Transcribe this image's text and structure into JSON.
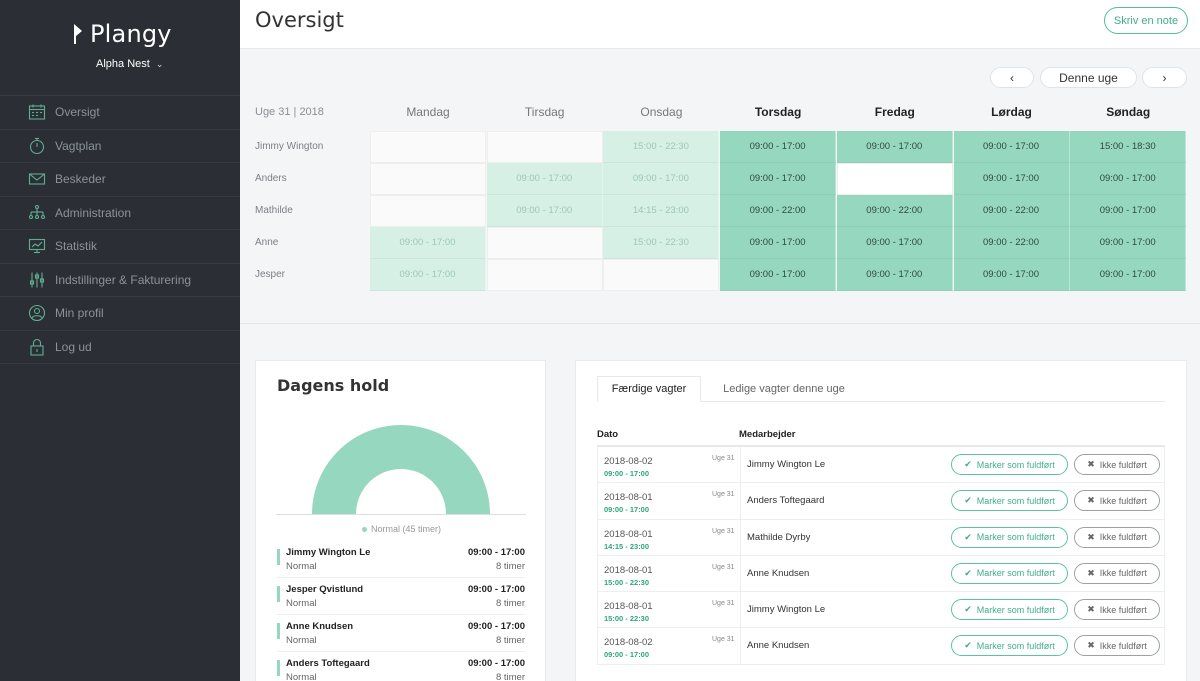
{
  "brand": {
    "name": "Plangy",
    "org": "Alpha Nest"
  },
  "sidebar": {
    "items": [
      {
        "label": "Oversigt",
        "icon": "calendar-icon"
      },
      {
        "label": "Vagtplan",
        "icon": "stopwatch-icon"
      },
      {
        "label": "Beskeder",
        "icon": "envelope-icon"
      },
      {
        "label": "Administration",
        "icon": "org-chart-icon"
      },
      {
        "label": "Statistik",
        "icon": "monitor-chart-icon"
      },
      {
        "label": "Indstillinger & Fakturering",
        "icon": "sliders-icon"
      },
      {
        "label": "Min profil",
        "icon": "user-icon"
      },
      {
        "label": "Log ud",
        "icon": "lock-icon"
      }
    ]
  },
  "header": {
    "title": "Oversigt",
    "note_button": "Skriv en note"
  },
  "schedule": {
    "prev": "‹",
    "current": "Denne uge",
    "next": "›",
    "week_label": "Uge 31 | 2018",
    "days": [
      "Mandag",
      "Tirsdag",
      "Onsdag",
      "Torsdag",
      "Fredag",
      "Lørdag",
      "Søndag"
    ],
    "rows": [
      {
        "name": "Jimmy Wington",
        "cells": [
          "",
          "",
          "15:00 - 22:30",
          "09:00 - 17:00",
          "09:00 - 17:00",
          "09:00 - 17:00",
          "15:00 - 18:30"
        ]
      },
      {
        "name": "Anders",
        "cells": [
          "",
          "09:00 - 17:00",
          "09:00 - 17:00",
          "09:00 - 17:00",
          "",
          "09:00 - 17:00",
          "09:00 - 17:00"
        ]
      },
      {
        "name": "Mathilde",
        "cells": [
          "",
          "09:00 - 17:00",
          "14:15 - 23:00",
          "09:00 - 22:00",
          "09:00 - 22:00",
          "09:00 - 22:00",
          "09:00 - 17:00"
        ]
      },
      {
        "name": "Anne",
        "cells": [
          "09:00 - 17:00",
          "",
          "15:00 - 22:30",
          "09:00 - 17:00",
          "09:00 - 17:00",
          "09:00 - 22:00",
          "09:00 - 17:00"
        ]
      },
      {
        "name": "Jesper",
        "cells": [
          "09:00 - 17:00",
          "",
          "",
          "09:00 - 17:00",
          "09:00 - 17:00",
          "09:00 - 17:00",
          "09:00 - 17:00"
        ]
      }
    ]
  },
  "team": {
    "title": "Dagens hold",
    "legend": "Normal (45 timer)",
    "members": [
      {
        "name": "Jimmy Wington Le",
        "type": "Normal",
        "time": "09:00 - 17:00",
        "hours": "8 timer"
      },
      {
        "name": "Jesper Qvistlund",
        "type": "Normal",
        "time": "09:00 - 17:00",
        "hours": "8 timer"
      },
      {
        "name": "Anne Knudsen",
        "type": "Normal",
        "time": "09:00 - 17:00",
        "hours": "8 timer"
      },
      {
        "name": "Anders Toftegaard",
        "type": "Normal",
        "time": "09:00 - 17:00",
        "hours": "8 timer"
      }
    ]
  },
  "shifts": {
    "tab_done": "Færdige vagter",
    "tab_open": "Ledige vagter denne uge",
    "col_date": "Dato",
    "col_employee": "Medarbejder",
    "done_label": "Marker som fuldført",
    "not_done_label": "Ikke fuldført",
    "rows": [
      {
        "date": "2018-08-02",
        "time": "09:00 - 17:00",
        "week": "Uge 31",
        "employee": "Jimmy Wington Le"
      },
      {
        "date": "2018-08-01",
        "time": "09:00 - 17:00",
        "week": "Uge 31",
        "employee": "Anders Toftegaard"
      },
      {
        "date": "2018-08-01",
        "time": "14:15 - 23:00",
        "week": "Uge 31",
        "employee": "Mathilde Dyrby"
      },
      {
        "date": "2018-08-01",
        "time": "15:00 - 22:30",
        "week": "Uge 31",
        "employee": "Anne Knudsen"
      },
      {
        "date": "2018-08-01",
        "time": "15:00 - 22:30",
        "week": "Uge 31",
        "employee": "Jimmy Wington Le"
      },
      {
        "date": "2018-08-02",
        "time": "09:00 - 17:00",
        "week": "Uge 31",
        "employee": "Anne Knudsen"
      }
    ]
  },
  "colors": {
    "accent": "#4fbf9a",
    "sidebar": "#2b2f35",
    "shift_current": "#96d7c0",
    "shift_past": "#d6f0e6"
  }
}
